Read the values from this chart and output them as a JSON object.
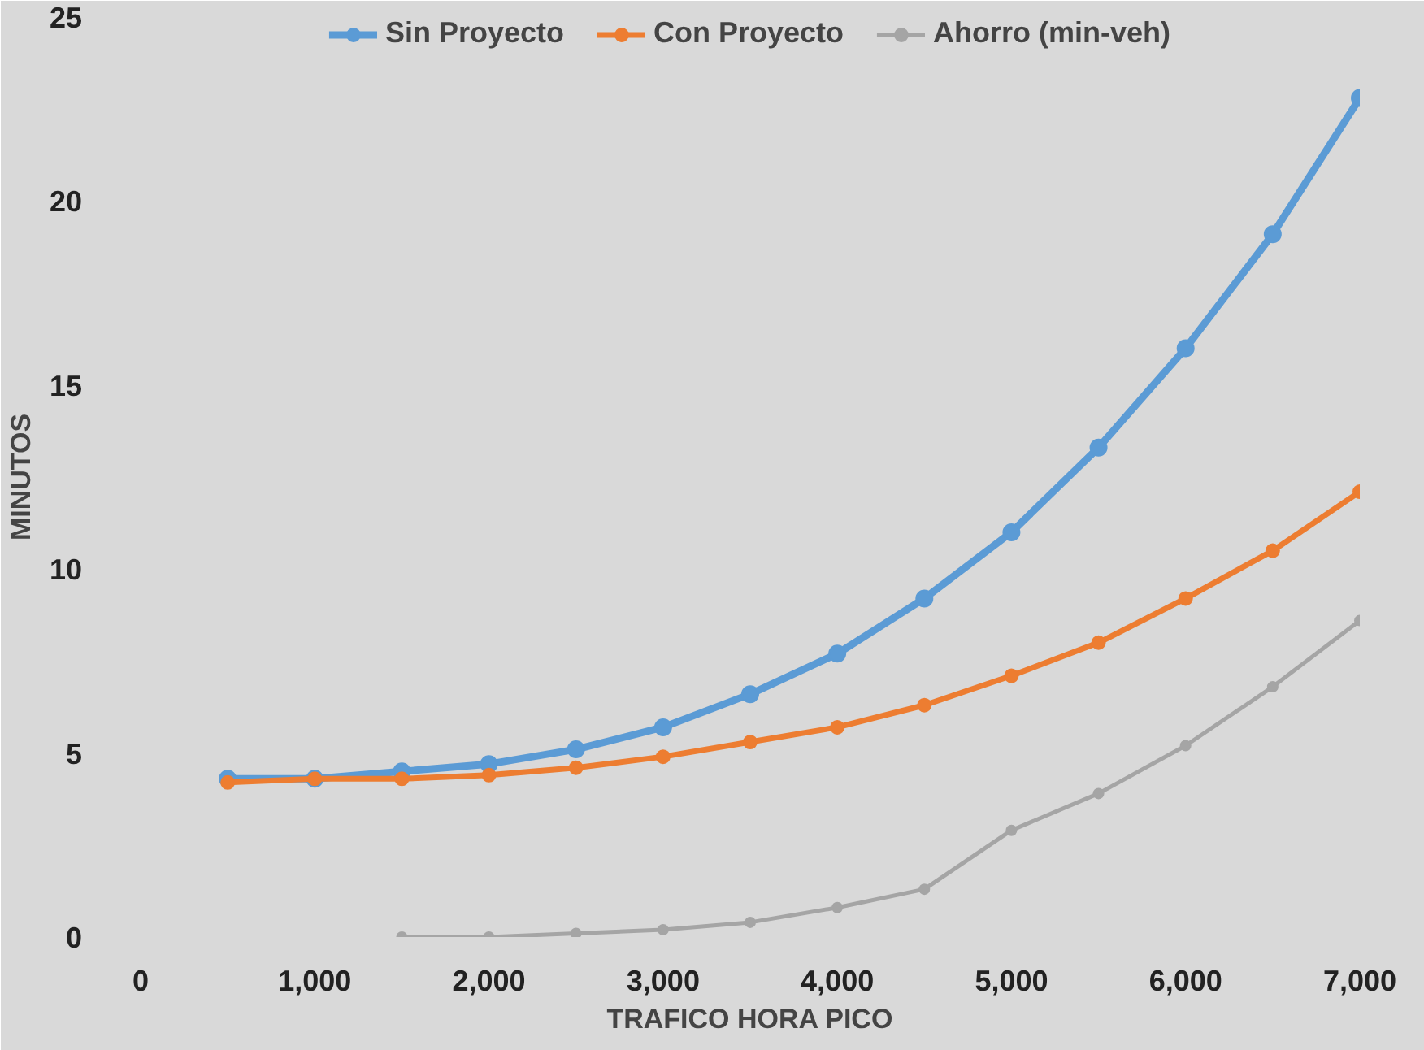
{
  "chart_data": {
    "type": "line",
    "xlabel": "TRAFICO HORA PICO",
    "ylabel": "MINUTOS",
    "xlim": [
      0,
      7000
    ],
    "xticks": [
      0,
      {
        "value": 1000,
        "label": "1,000"
      },
      {
        "value": 2000,
        "label": "2,000"
      },
      {
        "value": 3000,
        "label": "3,000"
      },
      {
        "value": 4000,
        "label": "4,000"
      },
      {
        "value": 5000,
        "label": "5,000"
      },
      {
        "value": 6000,
        "label": "6,000"
      },
      {
        "value": 7000,
        "label": "7,000"
      }
    ],
    "ylim": [
      0,
      25
    ],
    "yticks": [
      0,
      5,
      10,
      15,
      20,
      25
    ],
    "grid": false,
    "legend": "top",
    "marker": "circle",
    "line_style": "solid",
    "series": [
      {
        "name": "Sin Proyecto",
        "color": "#5b9bd5",
        "x": [
          500,
          1000,
          1500,
          2000,
          2500,
          3000,
          3500,
          4000,
          4500,
          5000,
          5500,
          6000,
          6500,
          7000
        ],
        "values": [
          4.3,
          4.3,
          4.5,
          4.7,
          5.1,
          5.7,
          6.6,
          7.7,
          9.2,
          11.0,
          13.3,
          16.0,
          19.1,
          22.8
        ]
      },
      {
        "name": "Con Proyecto",
        "color": "#ed7d31",
        "x": [
          500,
          1000,
          1500,
          2000,
          2500,
          3000,
          3500,
          4000,
          4500,
          5000,
          5500,
          6000,
          6500,
          7000
        ],
        "values": [
          4.2,
          4.3,
          4.3,
          4.4,
          4.6,
          4.9,
          5.3,
          5.7,
          6.3,
          7.1,
          8.0,
          9.2,
          10.5,
          12.1
        ]
      },
      {
        "name": "Ahorro (min-veh)",
        "color": "#a5a5a5",
        "x": [
          1500,
          2000,
          2500,
          3000,
          3500,
          4000,
          4500,
          5000,
          5500,
          6000,
          6500,
          7000
        ],
        "values": [
          0.0,
          0.0,
          0.1,
          0.2,
          0.4,
          0.8,
          1.3,
          2.9,
          3.9,
          5.2,
          6.8,
          8.6
        ]
      }
    ]
  }
}
